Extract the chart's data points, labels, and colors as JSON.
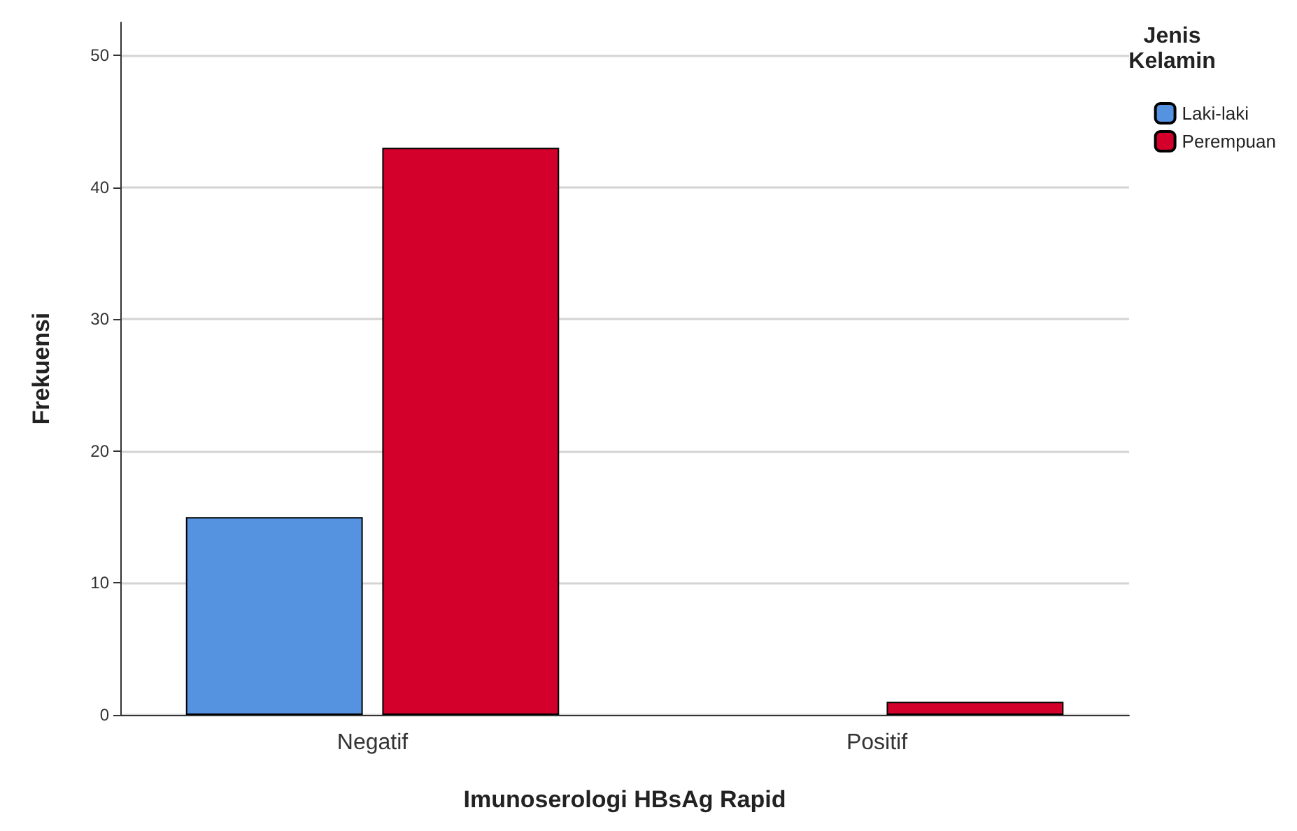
{
  "chart_data": {
    "type": "bar",
    "xlabel": "Imunoserologi HBsAg Rapid",
    "ylabel": "Frekuensi",
    "legend_title": "Jenis Kelamin",
    "categories": [
      "Negatif",
      "Positif"
    ],
    "series": [
      {
        "name": "Laki-laki",
        "color": "#5592e0",
        "values": [
          15,
          null
        ]
      },
      {
        "name": "Perempuan",
        "color": "#d3002b",
        "values": [
          43,
          1
        ]
      }
    ],
    "ylim": [
      0,
      52.5
    ],
    "yticks": [
      0,
      10,
      20,
      30,
      40,
      50
    ],
    "grid": "y",
    "legend": "top right"
  }
}
